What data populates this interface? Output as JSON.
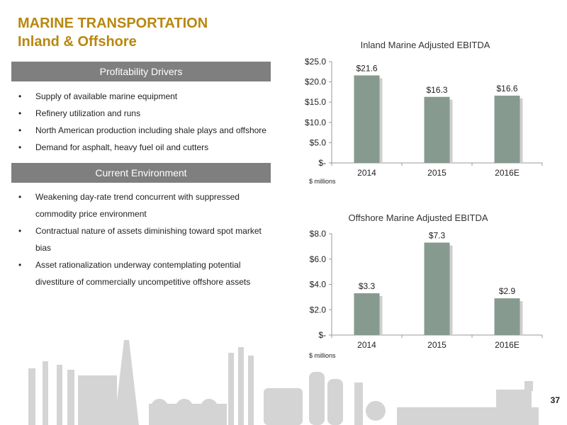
{
  "header": {
    "title_line1": "MARINE TRANSPORTATION",
    "title_line2": "Inland & Offshore"
  },
  "drivers": {
    "heading": "Profitability Drivers",
    "items": [
      "Supply of available marine equipment",
      "Refinery utilization and runs",
      "North American production including shale plays and offshore",
      "Demand for asphalt, heavy fuel oil and cutters"
    ]
  },
  "environment": {
    "heading": "Current Environment",
    "items": [
      "Weakening day-rate trend concurrent with suppressed commodity price environment",
      "Contractual nature of assets diminishing toward spot market bias",
      "Asset rationalization underway contemplating potential divestiture of commercially uncompetitive offshore assets"
    ]
  },
  "colors": {
    "title": "#b8870f",
    "bar": "#879a8f",
    "header_bg": "#7f7f7f",
    "skyline": "#d4d4d4"
  },
  "page_number": "37",
  "chart_data": [
    {
      "type": "bar",
      "title": "Inland Marine Adjusted EBITDA",
      "unit_label": "$ millions",
      "categories": [
        "2014",
        "2015",
        "2016E"
      ],
      "values": [
        21.6,
        16.3,
        16.6
      ],
      "data_labels": [
        "$21.6",
        "$16.3",
        "$16.6"
      ],
      "ylim": [
        0,
        25
      ],
      "yticks": [
        0,
        5,
        10,
        15,
        20,
        25
      ],
      "ytick_labels": [
        "$-",
        "$5.0",
        "$10.0",
        "$15.0",
        "$20.0",
        "$25.0"
      ],
      "grid": false
    },
    {
      "type": "bar",
      "title": "Offshore Marine Adjusted EBITDA",
      "unit_label": "$ millions",
      "categories": [
        "2014",
        "2015",
        "2016E"
      ],
      "values": [
        3.3,
        7.3,
        2.9
      ],
      "data_labels": [
        "$3.3",
        "$7.3",
        "$2.9"
      ],
      "ylim": [
        0,
        8
      ],
      "yticks": [
        0,
        2,
        4,
        6,
        8
      ],
      "ytick_labels": [
        "$-",
        "$2.0",
        "$4.0",
        "$6.0",
        "$8.0"
      ],
      "grid": false
    }
  ]
}
